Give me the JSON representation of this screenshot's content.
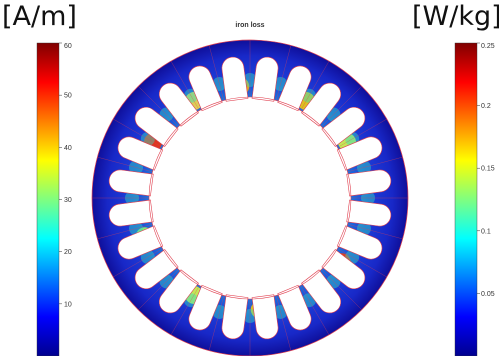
{
  "chart_data": {
    "type": "heatmap",
    "title": "iron loss",
    "left_colorbar": {
      "unit": "[A/m]",
      "range": [
        0,
        60
      ],
      "ticks": [
        10,
        20,
        30,
        40,
        50,
        60
      ]
    },
    "right_colorbar": {
      "unit": "[W/kg]",
      "range": [
        0,
        0.25
      ],
      "ticks": [
        0.05,
        0.1,
        0.15,
        0.2,
        0.25
      ]
    },
    "colormap": "jet",
    "stator_slots": 24
  },
  "colors": {
    "background": "#ffffff",
    "outline": "#e04050",
    "jet": [
      "#00008f",
      "#0000ff",
      "#0080ff",
      "#00ffff",
      "#80ff80",
      "#ffff00",
      "#ff8000",
      "#ff0000",
      "#800000"
    ]
  }
}
